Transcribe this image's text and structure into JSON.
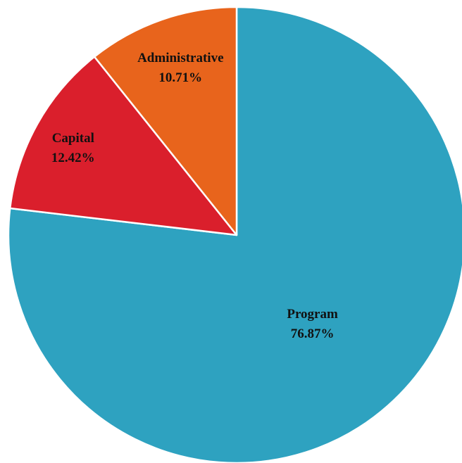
{
  "chart_data": {
    "type": "pie",
    "title": "",
    "start_angle_deg": 0,
    "direction": "clockwise",
    "slices": [
      {
        "label": "Program",
        "value": 76.87,
        "value_label": "76.87%",
        "color": "#2ea2c0"
      },
      {
        "label": "Capital",
        "value": 12.42,
        "value_label": "12.42%",
        "color": "#da1f2c"
      },
      {
        "label": "Administrative",
        "value": 10.71,
        "value_label": "10.71%",
        "color": "#e8641c"
      }
    ]
  }
}
